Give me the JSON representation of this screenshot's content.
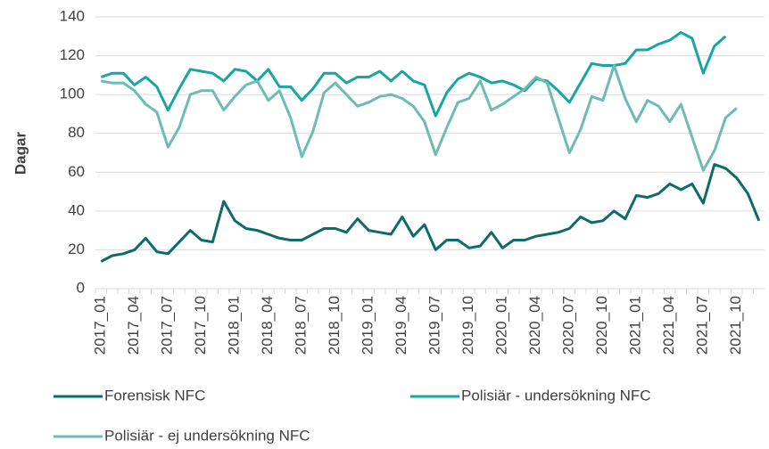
{
  "chart_data": {
    "type": "line",
    "y_label": "Dagar",
    "categories": [
      "2017_01",
      null,
      null,
      "2017_04",
      null,
      null,
      "2017_07",
      null,
      null,
      "2017_10",
      null,
      null,
      "2018_01",
      null,
      null,
      "2018_04",
      null,
      null,
      "2018_07",
      null,
      null,
      "2018_10",
      null,
      null,
      "2019_01",
      null,
      null,
      "2019_04",
      null,
      null,
      "2019_07",
      null,
      null,
      "2019_10",
      null,
      null,
      "2020_01",
      null,
      null,
      "2020_04",
      null,
      null,
      "2020_07",
      null,
      null,
      "2020_10",
      null,
      null,
      "2021_01",
      null,
      null,
      "2021_04",
      null,
      null,
      "2021_07",
      null,
      null,
      "2021_10",
      null,
      null
    ],
    "series": [
      {
        "name": "Forensisk NFC",
        "color": "#0e6b6a",
        "values": [
          14,
          17,
          18,
          20,
          26,
          19,
          18,
          24,
          30,
          25,
          24,
          45,
          35,
          31,
          30,
          28,
          26,
          25,
          25,
          28,
          31,
          31,
          29,
          36,
          30,
          29,
          28,
          37,
          27,
          33,
          20,
          25,
          25,
          21,
          22,
          29,
          21,
          25,
          25,
          27,
          28,
          29,
          31,
          37,
          34,
          35,
          40,
          36,
          48,
          47,
          49,
          54,
          51,
          54,
          44,
          64,
          62,
          57,
          49,
          35
        ]
      },
      {
        "name": "Polisiär - undersökning NFC",
        "color": "#17a6a1",
        "values": [
          109,
          111,
          111,
          105,
          109,
          104,
          92,
          103,
          113,
          112,
          111,
          107,
          113,
          112,
          107,
          113,
          104,
          104,
          97,
          103,
          111,
          111,
          106,
          109,
          109,
          112,
          107,
          112,
          107,
          105,
          89,
          101,
          108,
          111,
          109,
          106,
          107,
          105,
          102,
          108,
          107,
          102,
          96,
          106,
          116,
          115,
          115,
          116,
          123,
          123,
          126,
          128,
          132,
          129,
          111,
          125,
          130,
          null,
          null,
          null
        ]
      },
      {
        "name": "Polisiär - ej undersökning NFC",
        "color": "#6cbbb5",
        "values": [
          107,
          106,
          106,
          102,
          95,
          91,
          73,
          83,
          100,
          102,
          102,
          92,
          99,
          105,
          107,
          97,
          102,
          88,
          68,
          81,
          101,
          106,
          100,
          94,
          96,
          99,
          100,
          98,
          94,
          86,
          69,
          83,
          96,
          98,
          107,
          92,
          95,
          99,
          103,
          109,
          106,
          88,
          70,
          82,
          99,
          97,
          115,
          98,
          86,
          97,
          94,
          86,
          95,
          78,
          61,
          71,
          88,
          93,
          null,
          null
        ]
      }
    ],
    "ylim": [
      0,
      140
    ],
    "yticks": [
      0,
      20,
      40,
      60,
      80,
      100,
      120,
      140
    ],
    "grid": true
  }
}
